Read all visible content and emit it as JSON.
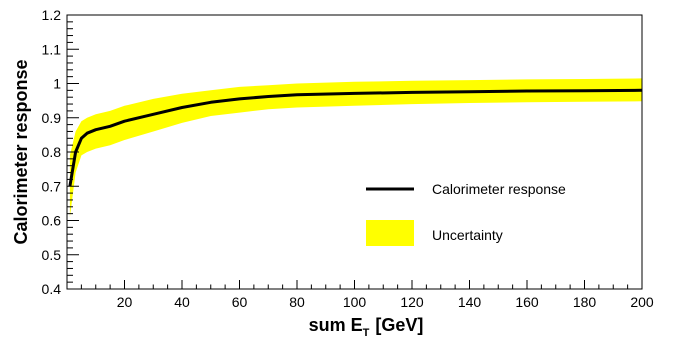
{
  "chart_data": {
    "type": "line",
    "xlabel": "sum E",
    "xlabel_sub": "T",
    "xlabel_unit": "[GeV]",
    "ylabel": "Calorimeter response",
    "xlim": [
      0,
      200
    ],
    "ylim": [
      0.4,
      1.2
    ],
    "x_ticks": [
      20,
      40,
      60,
      80,
      100,
      120,
      140,
      160,
      180,
      200
    ],
    "y_ticks": [
      0.4,
      0.5,
      0.6,
      0.7,
      0.8,
      0.9,
      1,
      1.1,
      1.2
    ],
    "grid": false,
    "legend_position": "center-right",
    "series": [
      {
        "name": "Calorimeter response",
        "kind": "line",
        "color": "#000000",
        "x": [
          1,
          3,
          5,
          7,
          10,
          15,
          20,
          30,
          40,
          50,
          60,
          70,
          80,
          100,
          120,
          140,
          160,
          180,
          200
        ],
        "y": [
          0.7,
          0.8,
          0.84,
          0.855,
          0.865,
          0.875,
          0.89,
          0.91,
          0.93,
          0.945,
          0.955,
          0.962,
          0.967,
          0.971,
          0.974,
          0.976,
          0.978,
          0.979,
          0.98
        ]
      },
      {
        "name": "Uncertainty",
        "kind": "band",
        "color": "#ffff00",
        "x": [
          1,
          3,
          5,
          7,
          10,
          15,
          20,
          30,
          40,
          50,
          60,
          70,
          80,
          100,
          120,
          140,
          160,
          180,
          200
        ],
        "lower": [
          0.61,
          0.74,
          0.79,
          0.8,
          0.81,
          0.82,
          0.835,
          0.86,
          0.885,
          0.905,
          0.915,
          0.925,
          0.93,
          0.935,
          0.94,
          0.943,
          0.945,
          0.947,
          0.948
        ],
        "upper": [
          0.79,
          0.86,
          0.89,
          0.9,
          0.91,
          0.92,
          0.935,
          0.955,
          0.97,
          0.98,
          0.99,
          0.995,
          1.0,
          1.005,
          1.008,
          1.01,
          1.012,
          1.013,
          1.015
        ]
      }
    ]
  }
}
